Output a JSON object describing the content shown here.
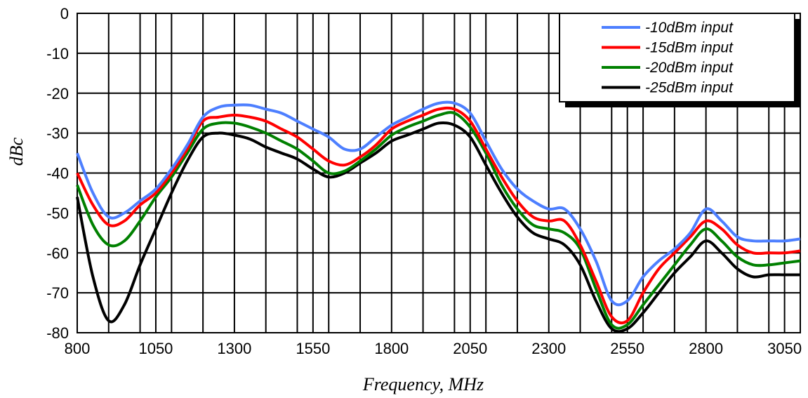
{
  "chart_data": {
    "type": "line",
    "xlabel": "Frequency, MHz",
    "ylabel": "dBc",
    "xlim": [
      800,
      3100
    ],
    "ylim": [
      -80,
      0
    ],
    "x_ticks": [
      800,
      1050,
      1300,
      1550,
      1800,
      2050,
      2300,
      2550,
      2800,
      3050
    ],
    "y_ticks": [
      0,
      -10,
      -20,
      -30,
      -40,
      -50,
      -60,
      -70,
      -80
    ],
    "grid": true,
    "legend_position": "top-right",
    "series": [
      {
        "name": "-10dBm input",
        "color": "#4d7fff",
        "points": [
          [
            800,
            -35
          ],
          [
            850,
            -45
          ],
          [
            900,
            -51
          ],
          [
            950,
            -50
          ],
          [
            1000,
            -47
          ],
          [
            1050,
            -44
          ],
          [
            1100,
            -39
          ],
          [
            1150,
            -33
          ],
          [
            1200,
            -26
          ],
          [
            1250,
            -23.5
          ],
          [
            1300,
            -23
          ],
          [
            1350,
            -23
          ],
          [
            1400,
            -24
          ],
          [
            1450,
            -25
          ],
          [
            1500,
            -27
          ],
          [
            1550,
            -29
          ],
          [
            1600,
            -31
          ],
          [
            1650,
            -34
          ],
          [
            1700,
            -34
          ],
          [
            1750,
            -31
          ],
          [
            1800,
            -28
          ],
          [
            1850,
            -26
          ],
          [
            1900,
            -24
          ],
          [
            1950,
            -22.5
          ],
          [
            2000,
            -22.5
          ],
          [
            2050,
            -25
          ],
          [
            2100,
            -32
          ],
          [
            2150,
            -39
          ],
          [
            2200,
            -44
          ],
          [
            2250,
            -47
          ],
          [
            2300,
            -49
          ],
          [
            2350,
            -49
          ],
          [
            2400,
            -54
          ],
          [
            2450,
            -62
          ],
          [
            2500,
            -72
          ],
          [
            2550,
            -72
          ],
          [
            2600,
            -66
          ],
          [
            2650,
            -62
          ],
          [
            2700,
            -59
          ],
          [
            2750,
            -55
          ],
          [
            2800,
            -49
          ],
          [
            2850,
            -52
          ],
          [
            2900,
            -56
          ],
          [
            2950,
            -57
          ],
          [
            3000,
            -57
          ],
          [
            3050,
            -57
          ],
          [
            3100,
            -56.5
          ]
        ]
      },
      {
        "name": "-15dBm input",
        "color": "#ff0000",
        "points": [
          [
            800,
            -40
          ],
          [
            850,
            -48
          ],
          [
            900,
            -53
          ],
          [
            950,
            -52
          ],
          [
            1000,
            -48
          ],
          [
            1050,
            -45
          ],
          [
            1100,
            -40
          ],
          [
            1150,
            -34
          ],
          [
            1200,
            -27
          ],
          [
            1250,
            -26
          ],
          [
            1300,
            -25.5
          ],
          [
            1350,
            -26
          ],
          [
            1400,
            -27
          ],
          [
            1450,
            -29
          ],
          [
            1500,
            -31
          ],
          [
            1550,
            -34
          ],
          [
            1600,
            -37
          ],
          [
            1650,
            -38
          ],
          [
            1700,
            -36
          ],
          [
            1750,
            -33
          ],
          [
            1800,
            -29
          ],
          [
            1850,
            -27
          ],
          [
            1900,
            -25.5
          ],
          [
            1950,
            -24
          ],
          [
            2000,
            -24
          ],
          [
            2050,
            -27
          ],
          [
            2100,
            -34
          ],
          [
            2150,
            -41
          ],
          [
            2200,
            -47
          ],
          [
            2250,
            -51
          ],
          [
            2300,
            -52
          ],
          [
            2350,
            -52
          ],
          [
            2400,
            -58
          ],
          [
            2450,
            -67
          ],
          [
            2500,
            -76
          ],
          [
            2550,
            -77
          ],
          [
            2600,
            -70
          ],
          [
            2650,
            -64
          ],
          [
            2700,
            -60
          ],
          [
            2750,
            -56
          ],
          [
            2800,
            -52
          ],
          [
            2850,
            -54
          ],
          [
            2900,
            -58
          ],
          [
            2950,
            -60
          ],
          [
            3000,
            -60
          ],
          [
            3050,
            -60
          ],
          [
            3100,
            -59.5
          ]
        ]
      },
      {
        "name": "-20dBm input",
        "color": "#008000",
        "points": [
          [
            800,
            -43
          ],
          [
            850,
            -53
          ],
          [
            900,
            -58
          ],
          [
            950,
            -57
          ],
          [
            1000,
            -52
          ],
          [
            1050,
            -46
          ],
          [
            1100,
            -41
          ],
          [
            1150,
            -35
          ],
          [
            1200,
            -29
          ],
          [
            1250,
            -27.5
          ],
          [
            1300,
            -27.5
          ],
          [
            1350,
            -28.5
          ],
          [
            1400,
            -30
          ],
          [
            1450,
            -32
          ],
          [
            1500,
            -34
          ],
          [
            1550,
            -37
          ],
          [
            1600,
            -40
          ],
          [
            1650,
            -39.5
          ],
          [
            1700,
            -37
          ],
          [
            1750,
            -34
          ],
          [
            1800,
            -30.5
          ],
          [
            1850,
            -28.5
          ],
          [
            1900,
            -27
          ],
          [
            1950,
            -25.5
          ],
          [
            2000,
            -25
          ],
          [
            2050,
            -28.5
          ],
          [
            2100,
            -35
          ],
          [
            2150,
            -43
          ],
          [
            2200,
            -49
          ],
          [
            2250,
            -53
          ],
          [
            2300,
            -54
          ],
          [
            2350,
            -55
          ],
          [
            2400,
            -59
          ],
          [
            2450,
            -69
          ],
          [
            2500,
            -78
          ],
          [
            2550,
            -78
          ],
          [
            2600,
            -73
          ],
          [
            2650,
            -68
          ],
          [
            2700,
            -63
          ],
          [
            2750,
            -58
          ],
          [
            2800,
            -54
          ],
          [
            2850,
            -57
          ],
          [
            2900,
            -61
          ],
          [
            2950,
            -63
          ],
          [
            3000,
            -63
          ],
          [
            3050,
            -62.5
          ],
          [
            3100,
            -62
          ]
        ]
      },
      {
        "name": "-25dBm input",
        "color": "#000000",
        "points": [
          [
            800,
            -46
          ],
          [
            850,
            -66
          ],
          [
            900,
            -77
          ],
          [
            950,
            -73
          ],
          [
            1000,
            -63
          ],
          [
            1050,
            -54
          ],
          [
            1100,
            -45
          ],
          [
            1150,
            -37
          ],
          [
            1200,
            -31
          ],
          [
            1250,
            -30
          ],
          [
            1300,
            -30.5
          ],
          [
            1350,
            -31.5
          ],
          [
            1400,
            -33.5
          ],
          [
            1450,
            -35
          ],
          [
            1500,
            -36.5
          ],
          [
            1550,
            -39
          ],
          [
            1600,
            -41
          ],
          [
            1650,
            -40
          ],
          [
            1700,
            -37.5
          ],
          [
            1750,
            -35
          ],
          [
            1800,
            -32
          ],
          [
            1850,
            -30.5
          ],
          [
            1900,
            -29
          ],
          [
            1950,
            -27.5
          ],
          [
            2000,
            -28
          ],
          [
            2050,
            -31
          ],
          [
            2100,
            -38
          ],
          [
            2150,
            -45
          ],
          [
            2200,
            -51
          ],
          [
            2250,
            -55
          ],
          [
            2300,
            -56.5
          ],
          [
            2350,
            -58
          ],
          [
            2400,
            -63
          ],
          [
            2450,
            -72
          ],
          [
            2500,
            -79
          ],
          [
            2550,
            -79
          ],
          [
            2600,
            -75
          ],
          [
            2650,
            -70
          ],
          [
            2700,
            -65
          ],
          [
            2750,
            -61
          ],
          [
            2800,
            -57
          ],
          [
            2850,
            -60
          ],
          [
            2900,
            -64
          ],
          [
            2950,
            -66
          ],
          [
            3000,
            -65.5
          ],
          [
            3050,
            -65.5
          ],
          [
            3100,
            -65.5
          ]
        ]
      }
    ]
  }
}
